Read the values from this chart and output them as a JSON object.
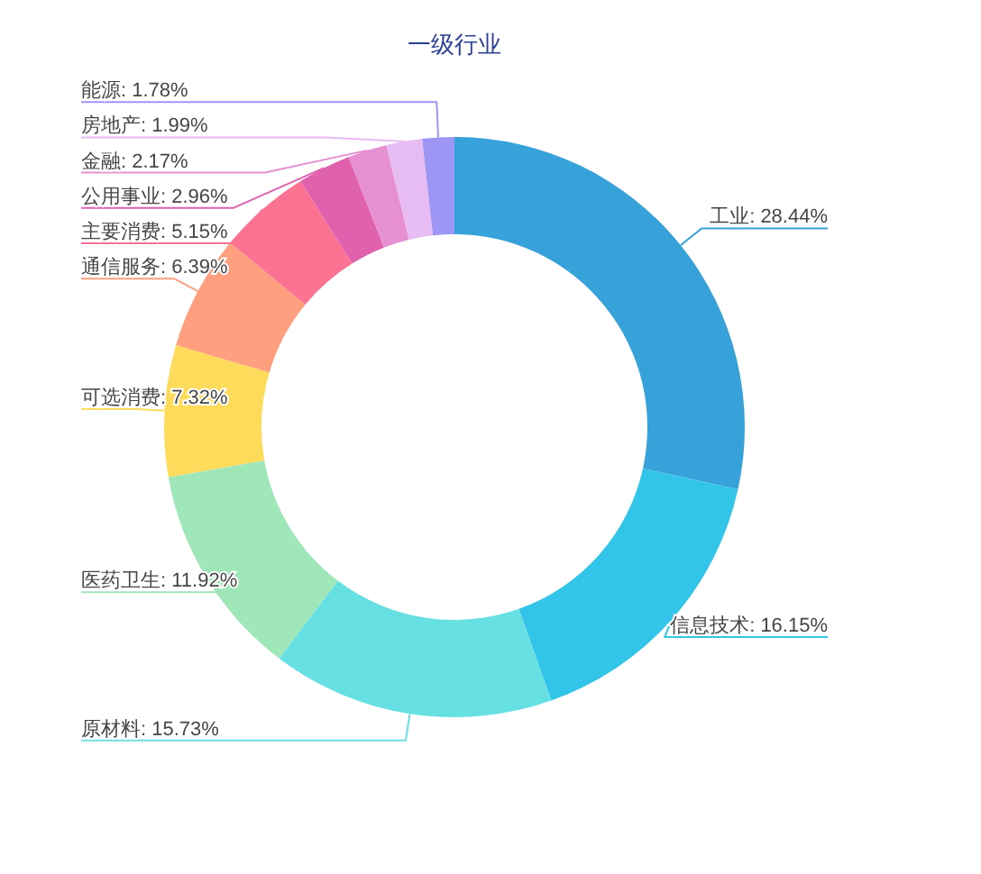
{
  "chart_data": {
    "type": "donut",
    "title": "一级行业",
    "categories": [
      "工业",
      "信息技术",
      "原材料",
      "医药卫生",
      "可选消费",
      "通信服务",
      "主要消费",
      "公用事业",
      "金融",
      "房地产",
      "能源"
    ],
    "values": [
      28.44,
      16.15,
      15.73,
      11.92,
      7.32,
      6.39,
      5.15,
      2.96,
      2.17,
      1.99,
      1.78
    ],
    "colors": [
      "#37a2da",
      "#32c5e9",
      "#67e0e3",
      "#9fe6b8",
      "#ffdb5c",
      "#ff9f7f",
      "#fb7293",
      "#e062ae",
      "#e690d1",
      "#e7bcf3",
      "#9d96f5"
    ],
    "value_labels": [
      "28.44%",
      "16.15%",
      "15.73%",
      "11.92%",
      "7.32%",
      "6.39%",
      "5.15%",
      "2.96%",
      "2.17%",
      "1.99%",
      "1.78%"
    ]
  }
}
